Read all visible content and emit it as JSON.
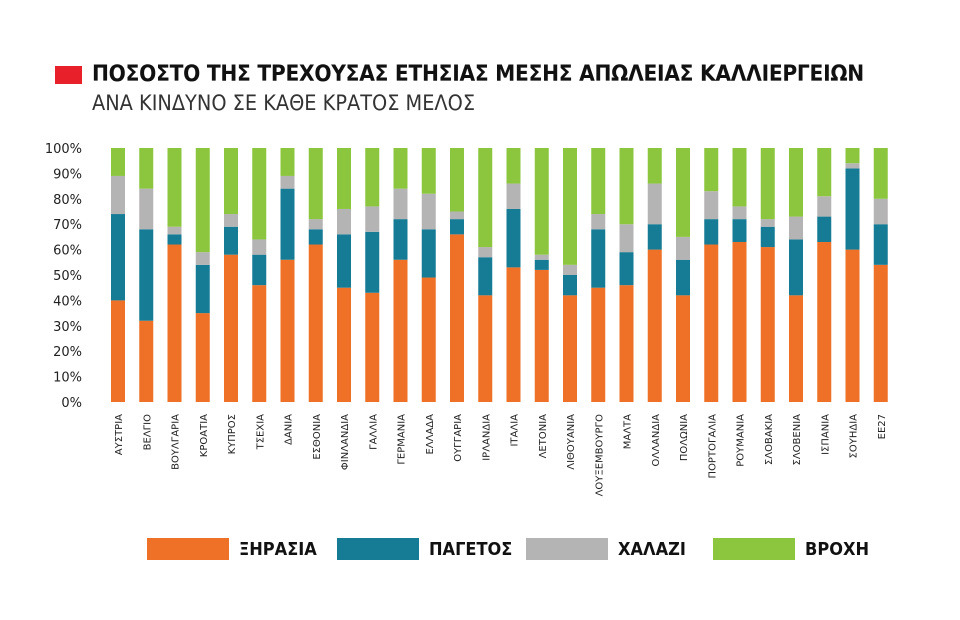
{
  "title": "ΠΟΣΟΣΤΟ ΤΗΣ ΤΡΕΧΟΥΣΑΣ ΕΤΗΣΙΑΣ ΜΕΣΗΣ ΑΠΩΛΕΙΑΣ ΚΑΛΛΙΕΡΓΕΙΩΝ",
  "subtitle": "ΑΝΑ ΚΙΝΔΥΝΟ ΣΕ ΚΑΘΕ ΚΡΑΤΟΣ ΜΕΛΟΣ",
  "title_marker_color": "#e8202a",
  "chart_data": {
    "type": "bar",
    "stacked": true,
    "title": "ΠΟΣΟΣΤΟ ΤΗΣ ΤΡΕΧΟΥΣΑΣ ΕΤΗΣΙΑΣ ΜΕΣΗΣ ΑΠΩΛΕΙΑΣ ΚΑΛΛΙΕΡΓΕΙΩΝ",
    "subtitle": "ΑΝΑ ΚΙΝΔΥΝΟ ΣΕ ΚΑΘΕ ΚΡΑΤΟΣ ΜΕΛΟΣ",
    "xlabel": "",
    "ylabel": "",
    "ylim": [
      0,
      100
    ],
    "yticks": [
      "0%",
      "10%",
      "20%",
      "30%",
      "40%",
      "50%",
      "60%",
      "70%",
      "80%",
      "90%",
      "100%"
    ],
    "grid": false,
    "legend_position": "bottom",
    "categories": [
      "ΑΥΣΤΡΙΑ",
      "ΒΕΛΓΙΟ",
      "ΒΟΥΛΓΑΡΙΑ",
      "ΚΡΟΑΤΙΑ",
      "ΚΥΠΡΟΣ",
      "ΤΣΕΧΙΑ",
      "ΔΑΝΙΑ",
      "ΕΣΘΟΝΙΑ",
      "ΦΙΝΛΑΝΔΙΑ",
      "ΓΑΛΛΙΑ",
      "ΓΕΡΜΑΝΙΑ",
      "ΕΛΛΑΔΑ",
      "ΟΥΓΓΑΡΙΑ",
      "ΙΡΛΑΝΔΙΑ",
      "ΙΤΑΛΙΑ",
      "ΛΕΤΟΝΙΑ",
      "ΛΙΘΟΥΑΝΙΑ",
      "ΛΟΥΞΕΜΒΟΥΡΓΟ",
      "ΜΑΛΤΑ",
      "ΟΛΛΑΝΔΙΑ",
      "ΠΟΛΩΝΙΑ",
      "ΠΟΡΤΟΓΑΛΙΑ",
      "ΡΟΥΜΑΝΙΑ",
      "ΣΛΟΒΑΚΙΑ",
      "ΣΛΟΒΕΝΙΑ",
      "ΙΣΠΑΝΙΑ",
      "ΣΟΥΗΔΙΑ",
      "ΕΕ27"
    ],
    "series": [
      {
        "name": "ΞΗΡΑΣΙΑ",
        "color": "#ee7127",
        "values": [
          40,
          32,
          62,
          35,
          58,
          46,
          56,
          62,
          45,
          43,
          56,
          49,
          66,
          42,
          53,
          52,
          42,
          45,
          46,
          60,
          42,
          62,
          63,
          61,
          42,
          63,
          60,
          54
        ]
      },
      {
        "name": "ΠΑΓΕΤΟΣ",
        "color": "#167b94",
        "values": [
          34,
          36,
          4,
          19,
          11,
          12,
          28,
          6,
          21,
          24,
          16,
          19,
          6,
          15,
          23,
          4,
          8,
          23,
          13,
          10,
          14,
          10,
          9,
          8,
          22,
          10,
          32,
          16
        ]
      },
      {
        "name": "ΧΑΛΑΖΙ",
        "color": "#b5b4b4",
        "values": [
          15,
          16,
          3,
          5,
          5,
          6,
          5,
          4,
          10,
          10,
          12,
          14,
          3,
          4,
          10,
          2,
          4,
          6,
          11,
          16,
          9,
          11,
          5,
          3,
          9,
          8,
          2,
          10
        ]
      },
      {
        "name": "ΒΡΟΧΗ",
        "color": "#8cc63f",
        "values": [
          11,
          16,
          31,
          41,
          26,
          36,
          11,
          28,
          24,
          23,
          16,
          18,
          25,
          39,
          14,
          42,
          46,
          26,
          30,
          14,
          35,
          17,
          23,
          28,
          27,
          19,
          6,
          20
        ]
      }
    ]
  }
}
